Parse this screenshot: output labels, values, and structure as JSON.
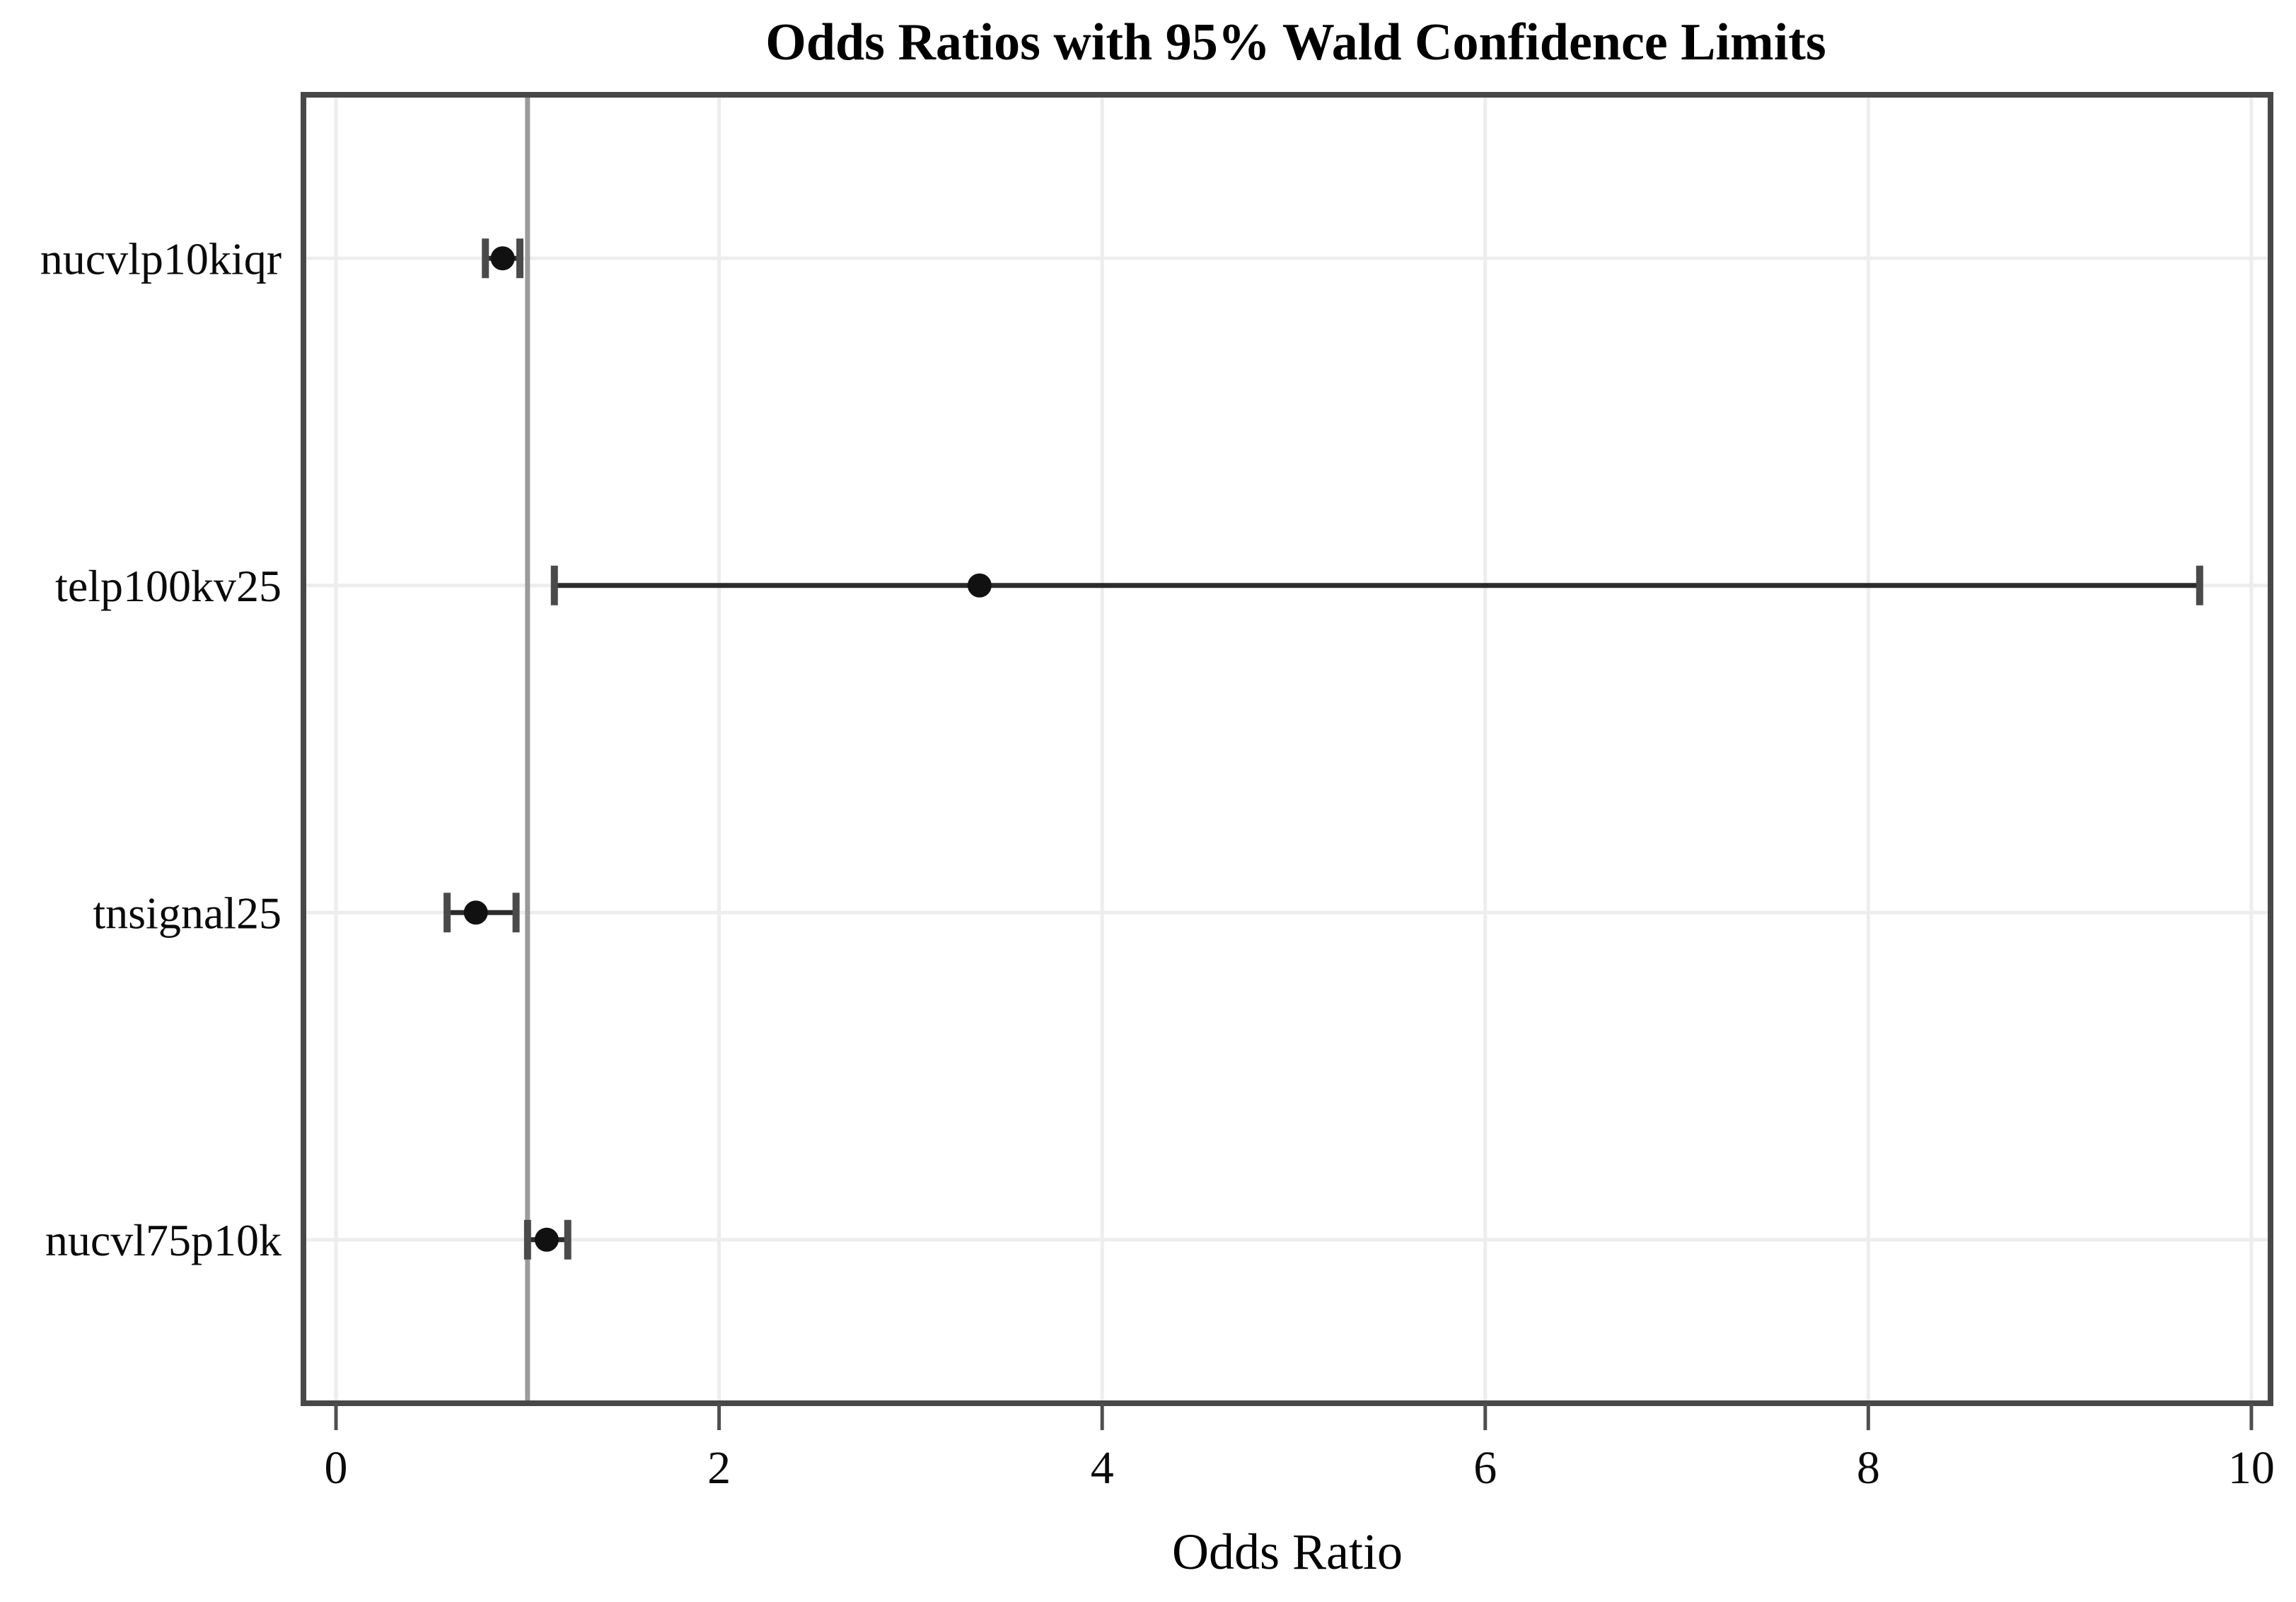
{
  "page": {
    "background": "#ffffff"
  },
  "chart_data": {
    "type": "scatter",
    "subtype": "forest-plot-errorbars",
    "title": "Odds Ratios with 95% Wald Confidence Limits",
    "xlabel": "Odds Ratio",
    "ylabel": "",
    "x_ticks": [
      0,
      2,
      4,
      6,
      8,
      10
    ],
    "xlim": [
      -0.17,
      10.1
    ],
    "grid": true,
    "legend": "none",
    "reference_line_x": 1,
    "rows": [
      {
        "label": "nucvlp10kiqr",
        "odds_ratio": 0.87,
        "ci_lower": 0.78,
        "ci_upper": 0.96
      },
      {
        "label": "telp100kv25",
        "odds_ratio": 3.36,
        "ci_lower": 1.14,
        "ci_upper": 9.73
      },
      {
        "label": "tnsignal25",
        "odds_ratio": 0.73,
        "ci_lower": 0.58,
        "ci_upper": 0.94
      },
      {
        "label": "nucvl75p10k",
        "odds_ratio": 1.1,
        "ci_lower": 1.0,
        "ci_upper": 1.21
      }
    ],
    "colors": {
      "marker": "#111111",
      "ci_line": "#2b2b2b",
      "ci_cap": "#4a4a4a",
      "grid": "#ededed",
      "reference_line": "#9b9b9b",
      "frame": "#484848",
      "tick": "#4f4f4f",
      "text": "#000000"
    }
  }
}
